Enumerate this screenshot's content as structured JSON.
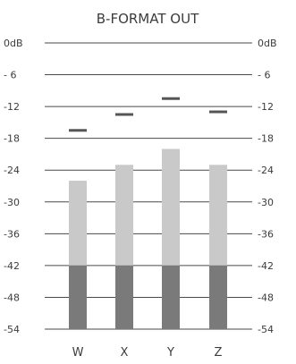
{
  "panel": {
    "title": "B-FORMAT OUT"
  },
  "colors": {
    "background": "#ffffff",
    "text": "#3c3c3c",
    "gridline": "#4a4a4a",
    "bar_upper": "#c9c9c9",
    "bar_lower": "#7a7a7a",
    "peak_marker": "#555555"
  },
  "chart_data": {
    "type": "bar",
    "title": "B-FORMAT OUT",
    "categories": [
      "W",
      "X",
      "Y",
      "Z"
    ],
    "ylim": [
      -54,
      0
    ],
    "unit": "dB",
    "tick_values": [
      0,
      -6,
      -12,
      -18,
      -24,
      -30,
      -36,
      -42,
      -48,
      -54
    ],
    "tick_labels": [
      "0dB",
      "- 6",
      "-12",
      "-18",
      "-24",
      "-30",
      "-36",
      "-42",
      "-48",
      "-54"
    ],
    "ticks_both_sides": true,
    "lower_band_threshold": -42,
    "series": [
      {
        "values": [
          -26,
          -23,
          -20,
          -23
        ]
      }
    ],
    "peak_hold": [
      -16.5,
      -13.5,
      -10.5,
      -13
    ]
  }
}
